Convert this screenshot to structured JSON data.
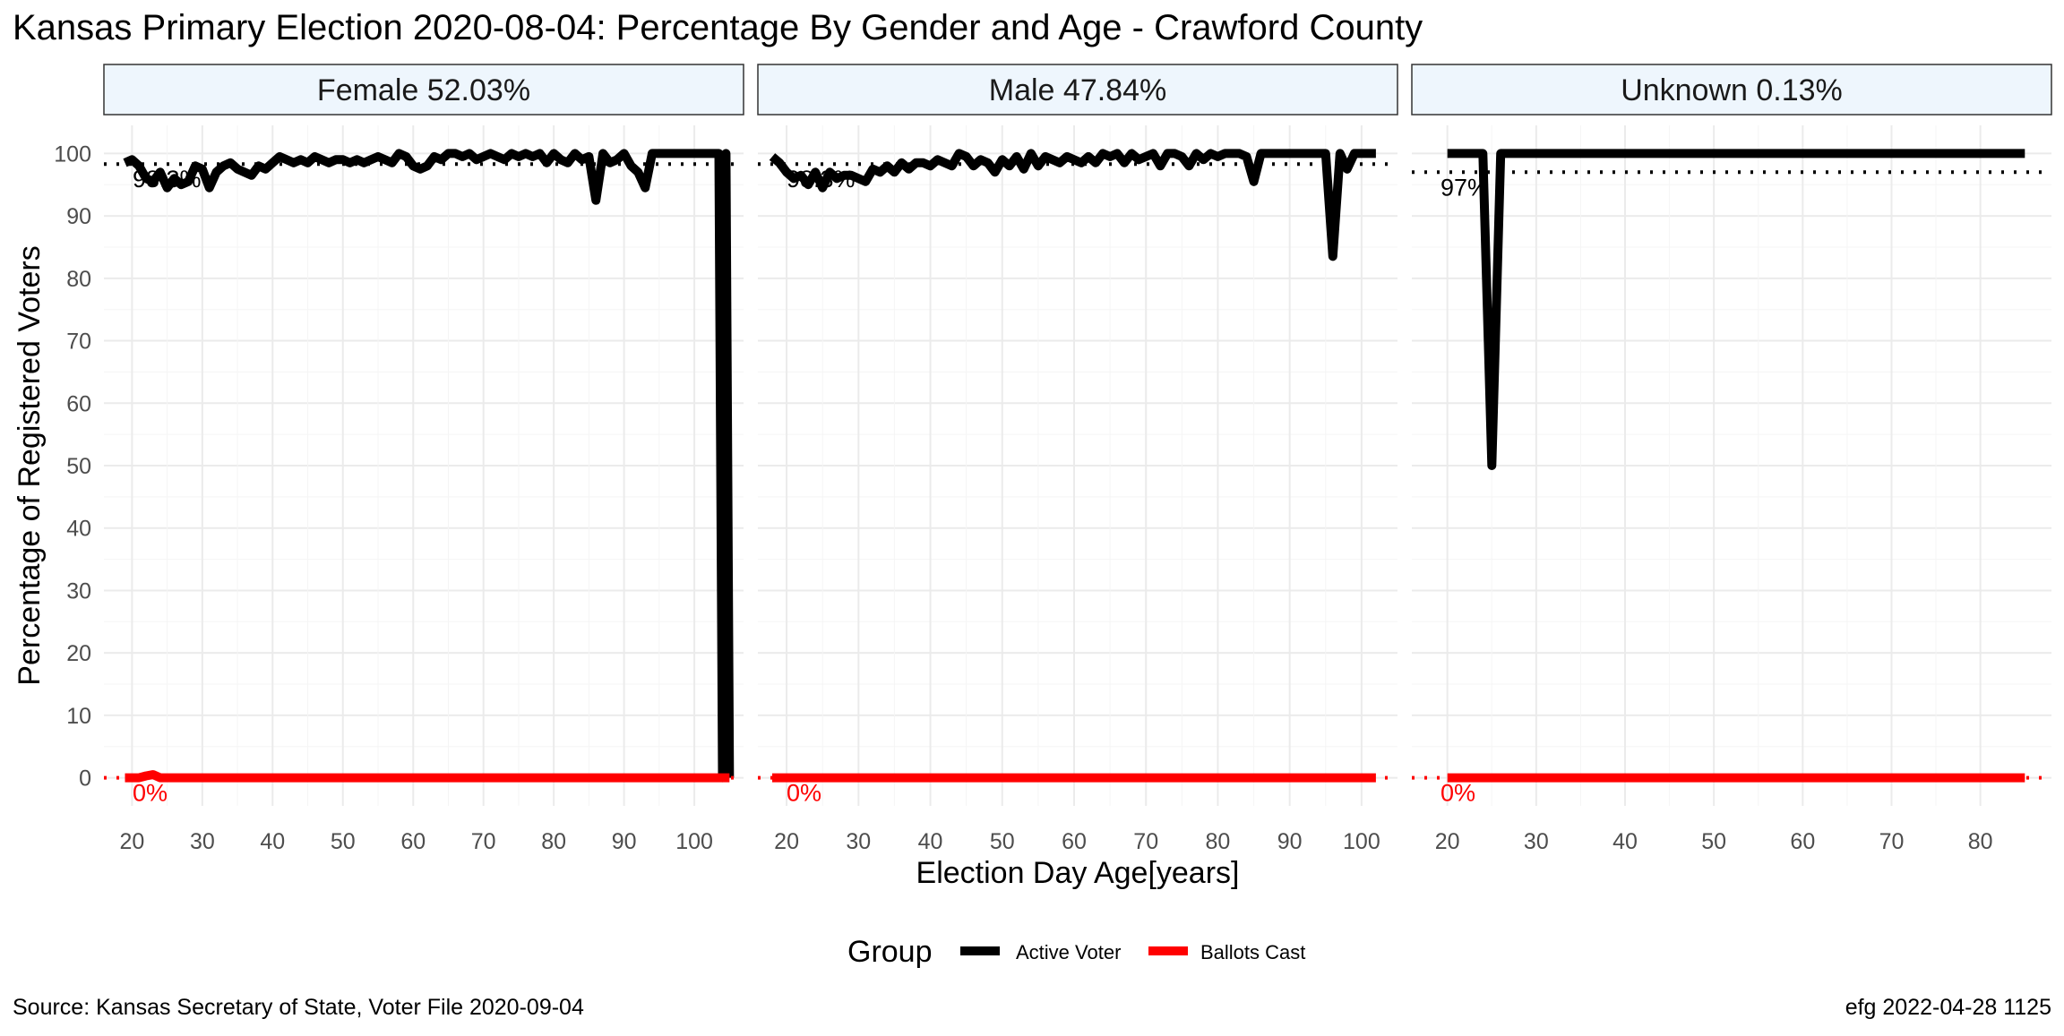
{
  "chart_data": {
    "type": "line",
    "title": "Kansas Primary Election 2020-08-04:  Percentage By Gender and Age - Crawford County",
    "xlabel": "Election Day Age[years]",
    "ylabel": "Percentage of Registered Voters",
    "ylim": [
      0,
      100
    ],
    "yticks": [
      0,
      10,
      20,
      30,
      40,
      50,
      60,
      70,
      80,
      90,
      100
    ],
    "grid": true,
    "legend": {
      "title": "Group",
      "position": "bottom",
      "entries": [
        {
          "label": "Active Voter",
          "color": "#000000"
        },
        {
          "label": "Ballots Cast",
          "color": "#ff0000"
        }
      ]
    },
    "caption_left": "Source:  Kansas Secretary of State, Voter File  2020-09-04",
    "caption_right": "efg 2022-04-28 1125",
    "colors": {
      "active": "#000000",
      "ballots": "#ff0000",
      "strip_fill": "#eef6fd",
      "grid": "#ebebeb"
    },
    "panels": [
      {
        "strip": "Female 52.03%",
        "xlim": [
          16,
          107
        ],
        "xticks": [
          20,
          30,
          40,
          50,
          60,
          70,
          80,
          90,
          100
        ],
        "ref_active": {
          "value": 98.3,
          "label": "98.3%"
        },
        "ref_ballots": {
          "value": 0,
          "label": "0%"
        },
        "series": [
          {
            "name": "Active Voter",
            "x": [
              19,
              20,
              21,
              22,
              23,
              24,
              25,
              26,
              27,
              28,
              29,
              30,
              31,
              32,
              33,
              34,
              35,
              36,
              37,
              38,
              39,
              40,
              41,
              42,
              43,
              44,
              45,
              46,
              47,
              48,
              49,
              50,
              51,
              52,
              53,
              54,
              55,
              56,
              57,
              58,
              59,
              60,
              61,
              62,
              63,
              64,
              65,
              66,
              67,
              68,
              69,
              70,
              71,
              72,
              73,
              74,
              75,
              76,
              77,
              78,
              79,
              80,
              81,
              82,
              83,
              84,
              85,
              86,
              87,
              88,
              89,
              90,
              91,
              92,
              93,
              94,
              95,
              96,
              97,
              98,
              99,
              100,
              101,
              102,
              103,
              103.5,
              104,
              104.5,
              105
            ],
            "y": [
              98.5,
              99,
              98,
              96,
              95.5,
              97,
              94.5,
              96,
              95,
              95.5,
              98,
              97.5,
              94.5,
              97,
              98,
              98.5,
              97.5,
              97,
              96.5,
              98,
              97.5,
              98.5,
              99.5,
              99,
              98.5,
              99,
              98.5,
              99.5,
              99,
              98.5,
              99,
              99,
              98.5,
              99,
              98.5,
              99,
              99.5,
              99,
              98.5,
              100,
              99.5,
              98,
              97.5,
              98,
              99.5,
              99,
              100,
              100,
              99.5,
              100,
              99,
              99.5,
              100,
              99.5,
              99,
              100,
              99.5,
              100,
              99.5,
              100,
              98.5,
              100,
              99,
              98.5,
              100,
              99,
              99.5,
              92.5,
              100,
              98.5,
              99,
              100,
              98,
              97,
              94.5,
              100,
              100,
              100,
              100,
              100,
              100,
              100,
              100,
              100,
              100,
              100,
              0,
              100,
              0
            ]
          },
          {
            "name": "Ballots Cast",
            "x": [
              19,
              21,
              22,
              23,
              24,
              30,
              40,
              50,
              60,
              70,
              80,
              90,
              100,
              105
            ],
            "y": [
              0,
              0,
              0.3,
              0.5,
              0,
              0,
              0,
              0,
              0,
              0,
              0,
              0,
              0,
              0
            ]
          }
        ]
      },
      {
        "strip": "Male 47.84%",
        "xlim": [
          16,
          105
        ],
        "xticks": [
          20,
          30,
          40,
          50,
          60,
          70,
          80,
          90,
          100
        ],
        "ref_active": {
          "value": 98.3,
          "label": "98.3%"
        },
        "ref_ballots": {
          "value": 0,
          "label": "0%"
        },
        "series": [
          {
            "name": "Active Voter",
            "x": [
              18,
              19,
              20,
              21,
              22,
              23,
              24,
              25,
              26,
              27,
              28,
              29,
              30,
              31,
              32,
              33,
              34,
              35,
              36,
              37,
              38,
              39,
              40,
              41,
              42,
              43,
              44,
              45,
              46,
              47,
              48,
              49,
              50,
              51,
              52,
              53,
              54,
              55,
              56,
              57,
              58,
              59,
              60,
              61,
              62,
              63,
              64,
              65,
              66,
              67,
              68,
              69,
              70,
              71,
              72,
              73,
              74,
              75,
              76,
              77,
              78,
              79,
              80,
              81,
              82,
              83,
              84,
              85,
              86,
              87,
              88,
              89,
              90,
              91,
              92,
              93,
              94,
              95,
              96,
              97,
              98,
              99,
              100,
              101,
              102
            ],
            "y": [
              99.5,
              98.5,
              97,
              96,
              96.5,
              95,
              97,
              94.5,
              97,
              96,
              96.5,
              96.5,
              96,
              95.5,
              97.5,
              97,
              98,
              97,
              98.5,
              97.5,
              98.5,
              98.5,
              98,
              99,
              98.5,
              98,
              100,
              99.5,
              98,
              99,
              98.5,
              97,
              99,
              98,
              99.5,
              97.5,
              100,
              98,
              99.5,
              99,
              98.5,
              99.5,
              99,
              98.5,
              99.5,
              98.5,
              100,
              99.5,
              100,
              98.5,
              100,
              99,
              99.5,
              100,
              98,
              100,
              100,
              99.5,
              98,
              100,
              99,
              100,
              99.5,
              100,
              100,
              100,
              99.5,
              95.5,
              100,
              100,
              100,
              100,
              100,
              100,
              100,
              100,
              100,
              100,
              83.5,
              100,
              97.5,
              100,
              100,
              100,
              100
            ]
          },
          {
            "name": "Ballots Cast",
            "x": [
              18,
              30,
              40,
              50,
              60,
              70,
              80,
              90,
              100,
              102
            ],
            "y": [
              0,
              0,
              0,
              0,
              0,
              0,
              0,
              0,
              0,
              0
            ]
          }
        ]
      },
      {
        "strip": "Unknown 0.13%",
        "xlim": [
          16,
          88
        ],
        "xticks": [
          20,
          30,
          40,
          50,
          60,
          70,
          80
        ],
        "ref_active": {
          "value": 97,
          "label": "97%"
        },
        "ref_ballots": {
          "value": 0,
          "label": "0%"
        },
        "series": [
          {
            "name": "Active Voter",
            "x": [
              20,
              24,
              25,
              26,
              27,
              30,
              40,
              50,
              60,
              70,
              80,
              85
            ],
            "y": [
              100,
              100,
              50,
              100,
              100,
              100,
              100,
              100,
              100,
              100,
              100,
              100
            ]
          },
          {
            "name": "Ballots Cast",
            "x": [
              20,
              30,
              40,
              50,
              60,
              70,
              80,
              85
            ],
            "y": [
              0,
              0,
              0,
              0,
              0,
              0,
              0,
              0
            ]
          }
        ]
      }
    ]
  }
}
